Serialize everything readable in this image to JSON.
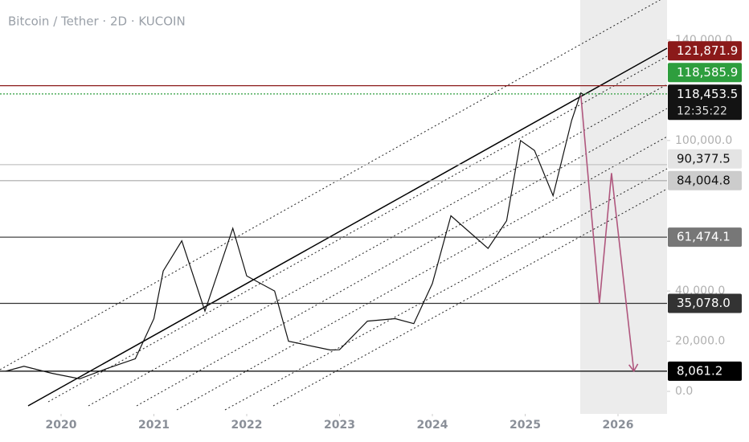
{
  "chart_data": {
    "type": "line",
    "title": "Bitcoin / Tether · 2D · KUCOIN",
    "xlim": [
      2019.342,
      2026.528
    ],
    "xticks": [
      2020,
      2021,
      2022,
      2023,
      2024,
      2025,
      2026
    ],
    "ylim": [
      -8970,
      156020
    ],
    "yticks": [
      {
        "value": 0,
        "label": "0.0"
      },
      {
        "value": 20000,
        "label": "20,000.0"
      },
      {
        "value": 40000,
        "label": "40,000.0"
      },
      {
        "value": 100000,
        "label": "100,000.0"
      },
      {
        "value": 140000,
        "label": "140,000.0"
      }
    ],
    "series": [
      {
        "color": "#111111",
        "x": [
          2019.4,
          2019.6,
          2019.9,
          2020.2,
          2020.5,
          2020.8,
          2021.0,
          2021.1,
          2021.3,
          2021.55,
          2021.85,
          2022.0,
          2022.3,
          2022.45,
          2022.9,
          2023.0,
          2023.3,
          2023.6,
          2023.8,
          2024.0,
          2024.2,
          2024.6,
          2024.8,
          2024.95,
          2025.1,
          2025.3,
          2025.5,
          2025.6,
          2025.62
        ],
        "values": [
          8000,
          10000,
          7200,
          5000,
          9200,
          13000,
          29000,
          48000,
          60000,
          32000,
          65000,
          46000,
          40000,
          20000,
          16500,
          16600,
          28000,
          29000,
          27000,
          43000,
          70000,
          57000,
          68000,
          100000,
          96000,
          78000,
          108000,
          119000,
          118453.5
        ]
      },
      {
        "color": "#b0577e",
        "x": [
          2025.6,
          2025.8,
          2025.93,
          2026.17
        ],
        "values": [
          118000,
          35078,
          87000,
          8061.2
        ]
      }
    ],
    "levels": [
      {
        "value": 121871.9,
        "label": "121,871.9",
        "color": "#8b1a1a",
        "line_color": "#8b1a1a",
        "text_color": "#ffffff",
        "dashed": false
      },
      {
        "value": 118585.9,
        "label": "118,585.9",
        "color": "#2e9e3e",
        "line_color": "#2e9e3e",
        "text_color": "#ffffff",
        "dashed": true
      },
      {
        "value": 90377.5,
        "label": "90,377.5",
        "color": "#e4e4e4",
        "line_color": "#c4c4c4",
        "text_color": "#111111",
        "dashed": false
      },
      {
        "value": 84004.8,
        "label": "84,004.8",
        "color": "#cccccc",
        "line_color": "#a8a8a8",
        "text_color": "#111111",
        "dashed": false
      },
      {
        "value": 61474.1,
        "label": "61,474.1",
        "color": "#777777",
        "line_color": "#444444",
        "text_color": "#ffffff",
        "dashed": false
      },
      {
        "value": 35078.0,
        "label": "35,078.0",
        "color": "#333333",
        "line_color": "#333333",
        "text_color": "#ffffff",
        "dashed": false
      },
      {
        "value": 8061.2,
        "label": "8,061.2",
        "color": "#000000",
        "line_color": "#000000",
        "text_color": "#ffffff",
        "dashed": false
      }
    ],
    "last_price": {
      "value": 118453.5,
      "label": "118,453.5",
      "countdown": "12:35:22",
      "color": "#131313"
    }
  }
}
